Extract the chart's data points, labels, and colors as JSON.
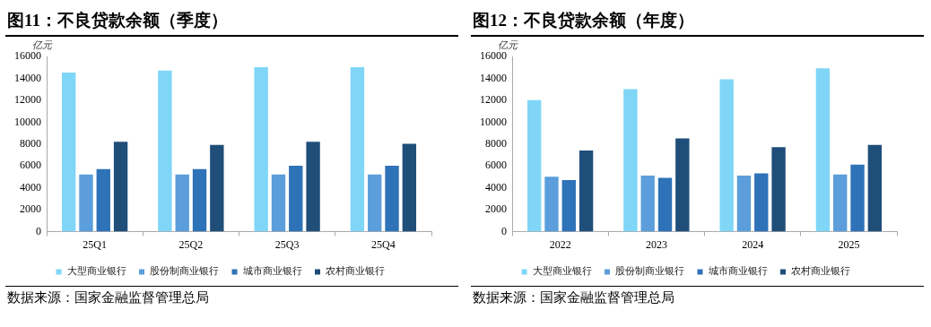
{
  "chart_data": [
    {
      "type": "bar",
      "title": "图11：不良贷款余额（季度）",
      "ylabel": "亿元",
      "categories": [
        "25Q1",
        "25Q2",
        "25Q3",
        "25Q4"
      ],
      "ylim": [
        0,
        16000
      ],
      "yticks": [
        0,
        2000,
        4000,
        6000,
        8000,
        10000,
        12000,
        14000,
        16000
      ],
      "legend": "bottom",
      "annotations": [
        "数据来源：国家金融监督管理总局"
      ],
      "series": [
        {
          "name": "大型商业银行",
          "color": "#7fd6f7",
          "values": [
            14600,
            14800,
            15100,
            15100
          ]
        },
        {
          "name": "股份制商业银行",
          "color": "#5b9edb",
          "values": [
            5300,
            5300,
            5300,
            5300
          ]
        },
        {
          "name": "城市商业银行",
          "color": "#2e72b8",
          "values": [
            5800,
            5800,
            6100,
            6100
          ]
        },
        {
          "name": "农村商业银行",
          "color": "#1f4e79",
          "values": [
            8300,
            8000,
            8300,
            8100
          ]
        }
      ]
    },
    {
      "type": "bar",
      "title": "图12：不良贷款余额（年度）",
      "ylabel": "亿元",
      "categories": [
        "2022",
        "2023",
        "2024",
        "2025"
      ],
      "ylim": [
        0,
        16000
      ],
      "yticks": [
        0,
        2000,
        4000,
        6000,
        8000,
        10000,
        12000,
        14000,
        16000
      ],
      "legend": "bottom",
      "annotations": [
        "数据来源：国家金融监督管理总局"
      ],
      "series": [
        {
          "name": "大型商业银行",
          "color": "#7fd6f7",
          "values": [
            12100,
            13100,
            14000,
            15000
          ]
        },
        {
          "name": "股份制商业银行",
          "color": "#5b9edb",
          "values": [
            5100,
            5200,
            5200,
            5300
          ]
        },
        {
          "name": "城市商业银行",
          "color": "#2e72b8",
          "values": [
            4800,
            5000,
            5400,
            6200
          ]
        },
        {
          "name": "农村商业银行",
          "color": "#1f4e79",
          "values": [
            7500,
            8600,
            7800,
            8000
          ]
        }
      ]
    }
  ]
}
